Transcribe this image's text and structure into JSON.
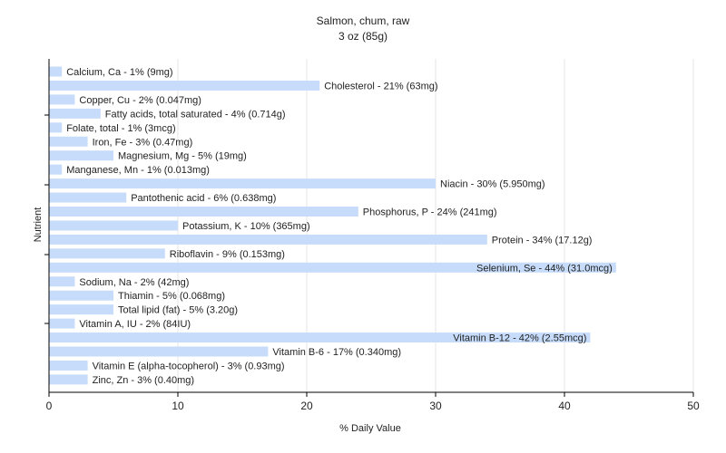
{
  "chart_data": {
    "type": "bar",
    "orientation": "horizontal",
    "title": "Salmon, chum, raw",
    "subtitle": "3 oz (85g)",
    "xlabel": "% Daily Value",
    "ylabel": "Nutrient",
    "xlim": [
      0,
      50
    ],
    "xticks": [
      0,
      10,
      20,
      30,
      40,
      50
    ],
    "grid": true,
    "bar_color": "#c6dcfa",
    "grid_color": "#e6e6e6",
    "bars": [
      {
        "label": "Calcium, Ca - 1% (9mg)",
        "value": 1
      },
      {
        "label": "Cholesterol - 21% (63mg)",
        "value": 21
      },
      {
        "label": "Copper, Cu - 2% (0.047mg)",
        "value": 2
      },
      {
        "label": "Fatty acids, total saturated - 4% (0.714g)",
        "value": 4
      },
      {
        "label": "Folate, total - 1% (3mcg)",
        "value": 1
      },
      {
        "label": "Iron, Fe - 3% (0.47mg)",
        "value": 3
      },
      {
        "label": "Magnesium, Mg - 5% (19mg)",
        "value": 5
      },
      {
        "label": "Manganese, Mn - 1% (0.013mg)",
        "value": 1
      },
      {
        "label": "Niacin - 30% (5.950mg)",
        "value": 30
      },
      {
        "label": "Pantothenic acid - 6% (0.638mg)",
        "value": 6
      },
      {
        "label": "Phosphorus, P - 24% (241mg)",
        "value": 24
      },
      {
        "label": "Potassium, K - 10% (365mg)",
        "value": 10
      },
      {
        "label": "Protein - 34% (17.12g)",
        "value": 34
      },
      {
        "label": "Riboflavin - 9% (0.153mg)",
        "value": 9
      },
      {
        "label": "Selenium, Se - 44% (31.0mcg)",
        "value": 44
      },
      {
        "label": "Sodium, Na - 2% (42mg)",
        "value": 2
      },
      {
        "label": "Thiamin - 5% (0.068mg)",
        "value": 5
      },
      {
        "label": "Total lipid (fat) - 5% (3.20g)",
        "value": 5
      },
      {
        "label": "Vitamin A, IU - 2% (84IU)",
        "value": 2
      },
      {
        "label": "Vitamin B-12 - 42% (2.55mcg)",
        "value": 42
      },
      {
        "label": "Vitamin B-6 - 17% (0.340mg)",
        "value": 17
      },
      {
        "label": "Vitamin E (alpha-tocopherol) - 3% (0.93mg)",
        "value": 3
      },
      {
        "label": "Zinc, Zn - 3% (0.40mg)",
        "value": 3
      }
    ]
  }
}
